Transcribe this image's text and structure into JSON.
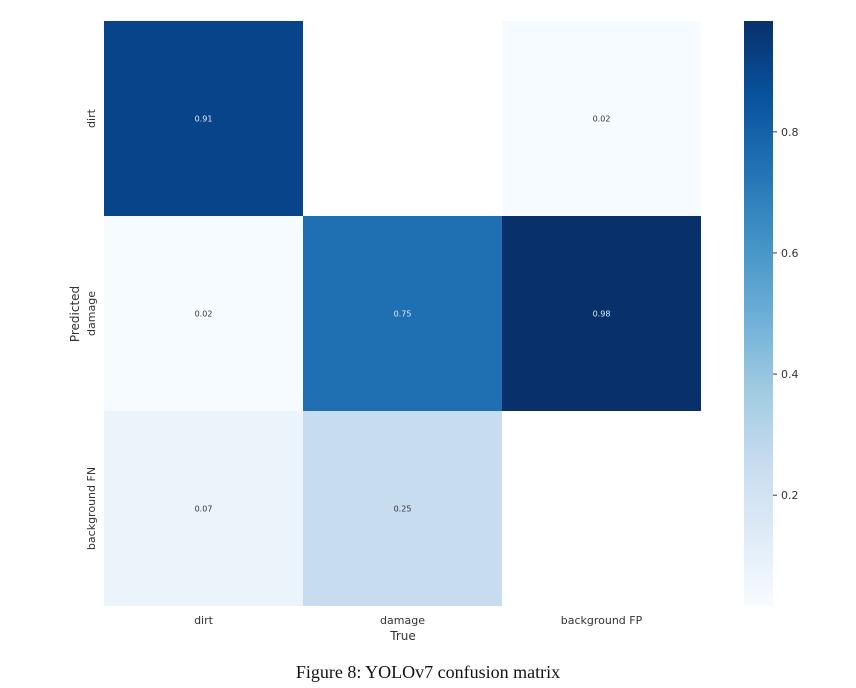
{
  "caption": "Figure 8: YOLOv7 confusion matrix",
  "chart_data": {
    "type": "heatmap",
    "title": "",
    "xlabel": "True",
    "ylabel": "Predicted",
    "x_categories": [
      "dirt",
      "damage",
      "background FP"
    ],
    "y_categories": [
      "dirt",
      "damage",
      "background FN"
    ],
    "values": [
      [
        0.91,
        0.0,
        0.02
      ],
      [
        0.02,
        0.75,
        0.98
      ],
      [
        0.07,
        0.25,
        0.0
      ]
    ],
    "cell_labels": [
      [
        "0.91",
        "",
        "0.02"
      ],
      [
        "0.02",
        "0.75",
        "0.98"
      ],
      [
        "0.07",
        "0.25",
        ""
      ]
    ],
    "colormap": "Blues",
    "zero_cells_blank": true,
    "colorbar": {
      "range": [
        0.017,
        0.983
      ],
      "ticks": [
        0.2,
        0.4,
        0.6,
        0.8
      ],
      "tick_labels": [
        "0.2",
        "0.4",
        "0.6",
        "0.8"
      ]
    },
    "label_color_light": "#deebf7",
    "label_color_dark": "#333333"
  }
}
